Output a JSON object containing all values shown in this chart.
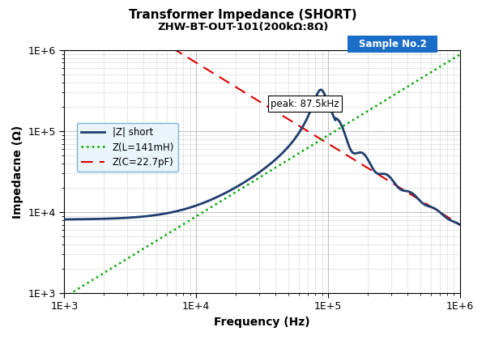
{
  "title": "Transformer Impedance (SHORT)",
  "subtitle": "ZHW-BT-OUT-101(200kΩ:8Ω)",
  "sample_label": "Sample No.2",
  "xlabel": "Frequency (Hz)",
  "ylabel": "Impedacne (Ω)",
  "xlim": [
    1000,
    1000000
  ],
  "ylim": [
    1000,
    1000000
  ],
  "peak_freq": 87500,
  "peak_label": "peak: 87.5kHz",
  "L_mH": 141,
  "C_pF": 22.7,
  "z_short_color": "#1e3d6e",
  "z_L_color": "#00aa00",
  "z_C_color": "#dd0000",
  "bg_color": "#ffffff",
  "grid_color": "#c0c0c0",
  "sample_box_color": "#1a6ec8",
  "legend_label_z": "|Z| short",
  "legend_label_L": "Z(L=141mH)",
  "legend_label_C": "Z(C=22.7pF)",
  "R_low": 8200,
  "peak_height": 580000,
  "Rs": 850,
  "osc_start_factor": 1.3,
  "osc_cycles": 5.5,
  "osc_amp": 0.22,
  "osc_decay": 2.5
}
